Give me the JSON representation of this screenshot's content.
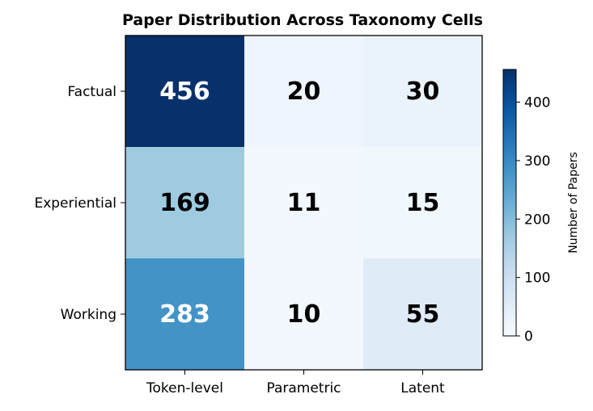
{
  "chart_data": {
    "type": "heatmap",
    "title": "Paper Distribution Across Taxonomy Cells",
    "rows": [
      "Factual",
      "Experiential",
      "Working"
    ],
    "columns": [
      "Token-level",
      "Parametric",
      "Latent"
    ],
    "values": [
      [
        456,
        20,
        30
      ],
      [
        169,
        11,
        15
      ],
      [
        283,
        10,
        55
      ]
    ],
    "colormap": "Blues",
    "vmin": 0,
    "vmax": 456,
    "colorbar": {
      "label": "Number of Papers",
      "ticks": [
        0,
        100,
        200,
        300,
        400
      ]
    },
    "annotation_text_colors": {
      "dark_cell": "#ffffff",
      "light_cell": "#000000"
    }
  }
}
